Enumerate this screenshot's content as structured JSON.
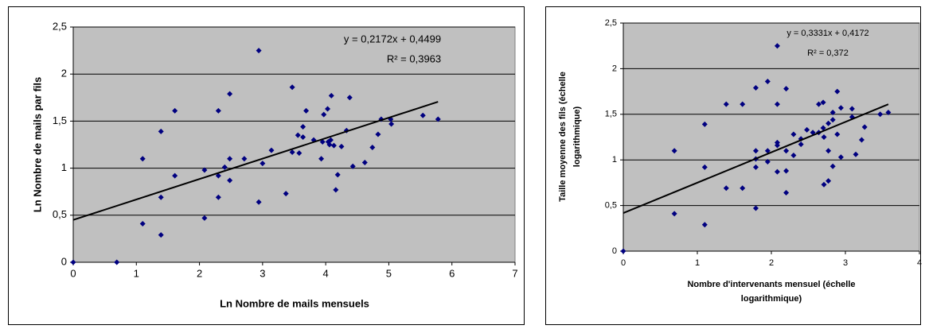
{
  "chart_data": [
    {
      "type": "scatter",
      "x_label": "Ln Nombre de mails mensuels",
      "y_label": "Ln Nombre de mails par fils",
      "xlim": [
        0,
        7
      ],
      "xticks": [
        0,
        1,
        2,
        3,
        4,
        5,
        6,
        7
      ],
      "ylim": [
        0,
        2.5
      ],
      "yticks": [
        0,
        {
          "value": 0.5,
          "label": "0,5"
        },
        1,
        {
          "value": 1.5,
          "label": "1,5"
        },
        2,
        {
          "value": 2.5,
          "label": "2,5"
        }
      ],
      "grid": true,
      "series": [
        {
          "color": "#000080",
          "x": [
            0,
            0.69,
            1.1,
            1.1,
            1.39,
            1.39,
            1.39,
            1.61,
            1.61,
            2.08,
            2.08,
            2.3,
            2.3,
            2.3,
            2.4,
            2.48,
            2.48,
            2.48,
            2.71,
            2.94,
            2.94,
            3.0,
            3.14,
            3.37,
            3.47,
            3.47,
            3.56,
            3.58,
            3.64,
            3.64,
            3.69,
            3.81,
            3.93,
            3.95,
            3.97,
            4.03,
            4.04,
            4.06,
            4.08,
            4.09,
            4.13,
            4.16,
            4.19,
            4.25,
            4.33,
            4.38,
            4.43,
            4.62,
            4.74,
            4.83,
            4.88,
            5.03,
            5.04,
            5.54,
            5.78
          ],
          "values": [
            0,
            0,
            1.1,
            0.41,
            1.39,
            0.69,
            0.29,
            1.61,
            0.92,
            0.98,
            0.47,
            1.61,
            0.92,
            0.69,
            1.01,
            1.79,
            1.1,
            0.87,
            1.1,
            2.25,
            0.64,
            1.05,
            1.19,
            0.73,
            1.86,
            1.17,
            1.35,
            1.16,
            1.44,
            1.33,
            1.61,
            1.3,
            1.1,
            1.28,
            1.57,
            1.63,
            1.28,
            1.25,
            1.3,
            1.77,
            1.24,
            0.77,
            0.93,
            1.23,
            1.4,
            1.75,
            1.02,
            1.06,
            1.22,
            1.36,
            1.52,
            1.52,
            1.47,
            1.56,
            1.52
          ]
        }
      ],
      "trendline": {
        "slope": 0.2172,
        "intercept": 0.4499,
        "label": "y = 0,2172x + 0,4499",
        "r2_label": "R² = 0,3963"
      }
    },
    {
      "type": "scatter",
      "x_label": [
        "Nombre d'intervenants mensuel (échelle",
        "logarithmique)"
      ],
      "y_label": [
        "Taille moyenne des fils (échelle",
        "logarithmique)"
      ],
      "xlim": [
        0,
        4
      ],
      "xticks": [
        0,
        1,
        2,
        3,
        4
      ],
      "ylim": [
        0,
        2.5
      ],
      "yticks": [
        0,
        {
          "value": 0.5,
          "label": "0,5"
        },
        1,
        {
          "value": 1.5,
          "label": "1,5"
        },
        2,
        {
          "value": 2.5,
          "label": "2,5"
        }
      ],
      "grid": true,
      "series": [
        {
          "color": "#000080",
          "x": [
            0,
            0.69,
            0.69,
            1.1,
            1.1,
            1.1,
            1.39,
            1.39,
            1.61,
            1.61,
            1.79,
            1.79,
            1.79,
            1.79,
            1.79,
            1.95,
            1.95,
            1.95,
            2.08,
            2.08,
            2.08,
            2.08,
            2.08,
            2.2,
            2.2,
            2.2,
            2.2,
            2.3,
            2.3,
            2.4,
            2.4,
            2.48,
            2.56,
            2.64,
            2.64,
            2.7,
            2.7,
            2.71,
            2.71,
            2.77,
            2.77,
            2.77,
            2.83,
            2.83,
            2.83,
            2.89,
            2.89,
            2.94,
            2.94,
            3.09,
            3.09,
            3.14,
            3.22,
            3.26,
            3.47,
            3.58
          ],
          "values": [
            0,
            1.1,
            0.41,
            1.39,
            0.92,
            0.29,
            1.61,
            0.69,
            1.61,
            0.69,
            1.79,
            1.1,
            1.01,
            0.92,
            0.47,
            1.86,
            1.1,
            0.98,
            2.25,
            1.61,
            1.19,
            1.16,
            0.87,
            1.78,
            1.1,
            0.88,
            0.64,
            1.05,
            1.28,
            1.23,
            1.17,
            1.33,
            1.3,
            1.61,
            1.3,
            1.63,
            1.35,
            1.25,
            0.73,
            1.4,
            1.1,
            0.77,
            1.52,
            0.93,
            1.44,
            1.75,
            1.28,
            1.57,
            1.03,
            1.56,
            1.47,
            1.06,
            1.22,
            1.36,
            1.5,
            1.52
          ]
        }
      ],
      "trendline": {
        "slope": 0.3331,
        "intercept": 0.4172,
        "label": "y = 0,3331x + 0,4172",
        "r2_label": "R² = 0,372"
      }
    }
  ]
}
